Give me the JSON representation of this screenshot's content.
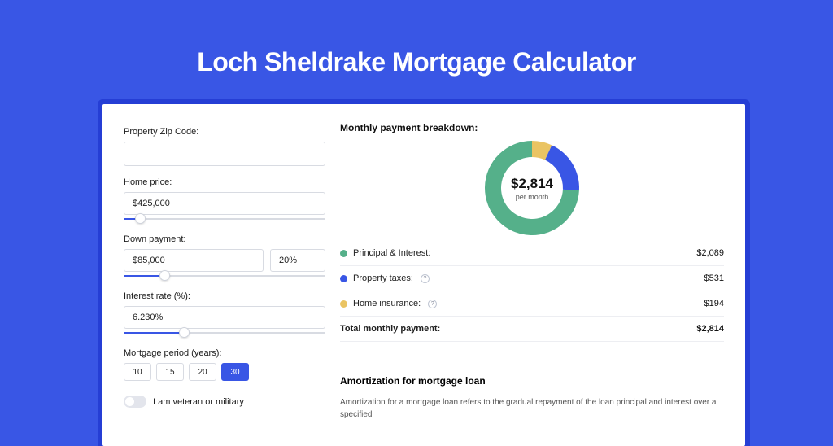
{
  "title": "Loch Sheldrake Mortgage Calculator",
  "colors": {
    "principal": "#55b08a",
    "taxes": "#3956e5",
    "insurance": "#eac463",
    "accent": "#3956e5",
    "border": "#d8dbe2",
    "bg_page": "#3956e5",
    "bg_card": "#ffffff",
    "track": "#d8dbe2"
  },
  "form": {
    "zip_label": "Property Zip Code:",
    "zip_value": "",
    "home_price_label": "Home price:",
    "home_price_value": "$425,000",
    "home_price_slider_pct": 8,
    "down_label": "Down payment:",
    "down_value": "$85,000",
    "down_pct_value": "20%",
    "down_slider_pct": 20,
    "rate_label": "Interest rate (%):",
    "rate_value": "6.230%",
    "rate_slider_pct": 30,
    "period_label": "Mortgage period (years):",
    "periods": [
      "10",
      "15",
      "20",
      "30"
    ],
    "period_active_index": 3,
    "veteran_label": "I am veteran or military",
    "veteran_on": false
  },
  "breakdown": {
    "heading": "Monthly payment breakdown:",
    "donut": {
      "type": "donut",
      "center_value": "$2,814",
      "center_sub": "per month",
      "outer_radius": 58,
      "inner_radius": 38,
      "slices": [
        {
          "key": "insurance",
          "value": 194,
          "color": "#eac463"
        },
        {
          "key": "taxes",
          "value": 531,
          "color": "#3956e5"
        },
        {
          "key": "principal",
          "value": 2089,
          "color": "#55b08a"
        }
      ]
    },
    "rows": [
      {
        "label": "Principal & Interest:",
        "value": "$2,089",
        "key": "principal",
        "info": false
      },
      {
        "label": "Property taxes:",
        "value": "$531",
        "key": "taxes",
        "info": true
      },
      {
        "label": "Home insurance:",
        "value": "$194",
        "key": "insurance",
        "info": true
      }
    ],
    "total_label": "Total monthly payment:",
    "total_value": "$2,814"
  },
  "amortization": {
    "heading": "Amortization for mortgage loan",
    "body": "Amortization for a mortgage loan refers to the gradual repayment of the loan principal and interest over a specified"
  }
}
